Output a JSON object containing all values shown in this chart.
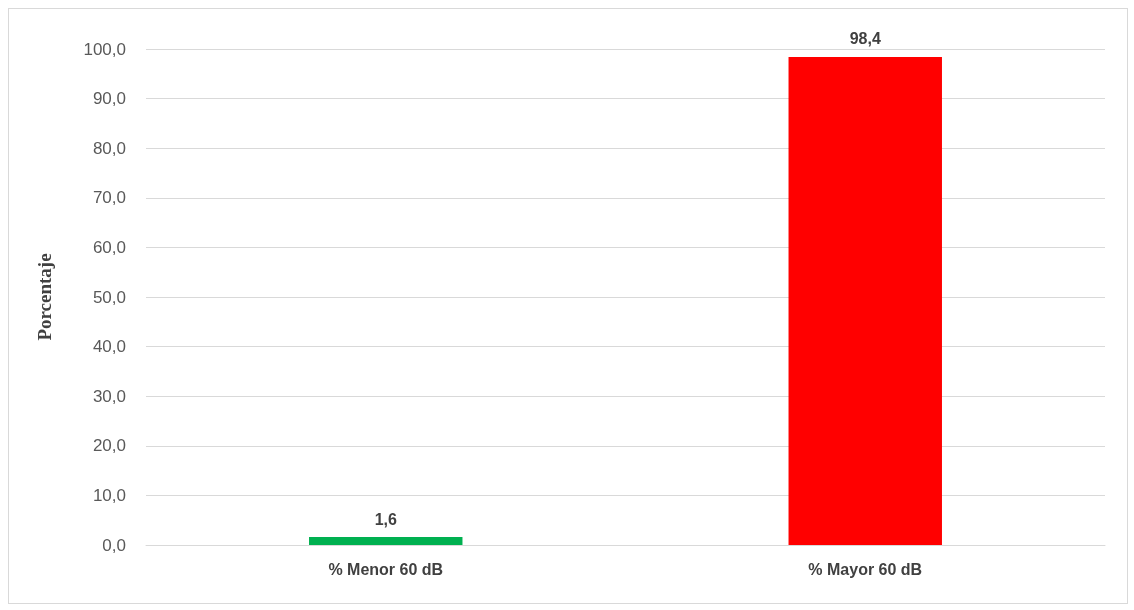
{
  "chart_data": {
    "type": "bar",
    "ylabel": "Porcentaje",
    "categories": [
      "% Menor 60 dB",
      "% Mayor 60 dB"
    ],
    "values": [
      1.6,
      98.4
    ],
    "colors": [
      "#00b050",
      "#ff0000"
    ],
    "value_labels": [
      "1,6",
      "98,4"
    ],
    "ylim": [
      0,
      100
    ],
    "yticks": [
      {
        "value": 0,
        "label": "0,0"
      },
      {
        "value": 10,
        "label": "10,0"
      },
      {
        "value": 20,
        "label": "20,0"
      },
      {
        "value": 30,
        "label": "30,0"
      },
      {
        "value": 40,
        "label": "40,0"
      },
      {
        "value": 50,
        "label": "50,0"
      },
      {
        "value": 60,
        "label": "60,0"
      },
      {
        "value": 70,
        "label": "70,0"
      },
      {
        "value": 80,
        "label": "80,0"
      },
      {
        "value": 90,
        "label": "90,0"
      },
      {
        "value": 100,
        "label": "100,0"
      }
    ],
    "grid": "y"
  }
}
